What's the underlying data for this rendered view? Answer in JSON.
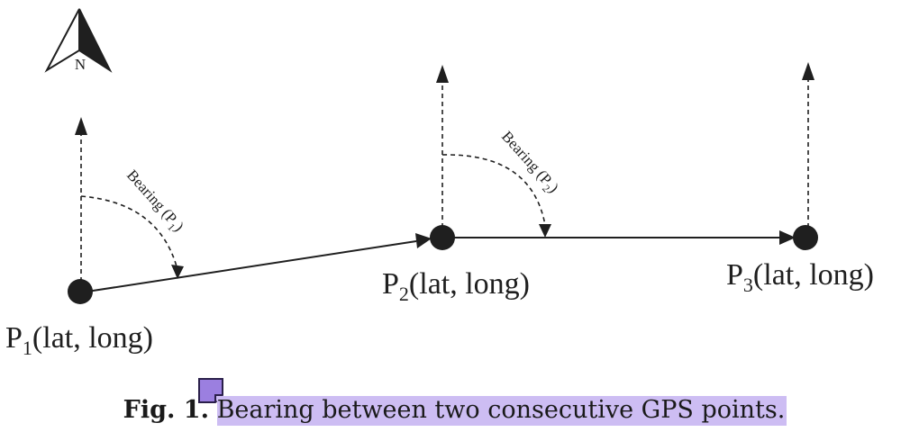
{
  "diagram": {
    "points": [
      {
        "id": "p1",
        "prefix": "P",
        "sub": "1",
        "suffix": "(lat, long)"
      },
      {
        "id": "p2",
        "prefix": "P",
        "sub": "2",
        "suffix": "(lat, long)"
      },
      {
        "id": "p3",
        "prefix": "P",
        "sub": "3",
        "suffix": "(lat, long)"
      }
    ],
    "bearings": [
      {
        "text": "Bearing (P",
        "sub": "1",
        "close": ")"
      },
      {
        "text": "Bearing (P",
        "sub": "2",
        "close": ")"
      }
    ],
    "north_label": "N"
  },
  "caption": {
    "label": "Fig. 1.",
    "text": "Bearing between two consecutive GPS points.",
    "highlight_color": "#cdbdf3",
    "note_color": "#9b7fe0"
  },
  "colors": {
    "ink": "#1f1f1f"
  }
}
